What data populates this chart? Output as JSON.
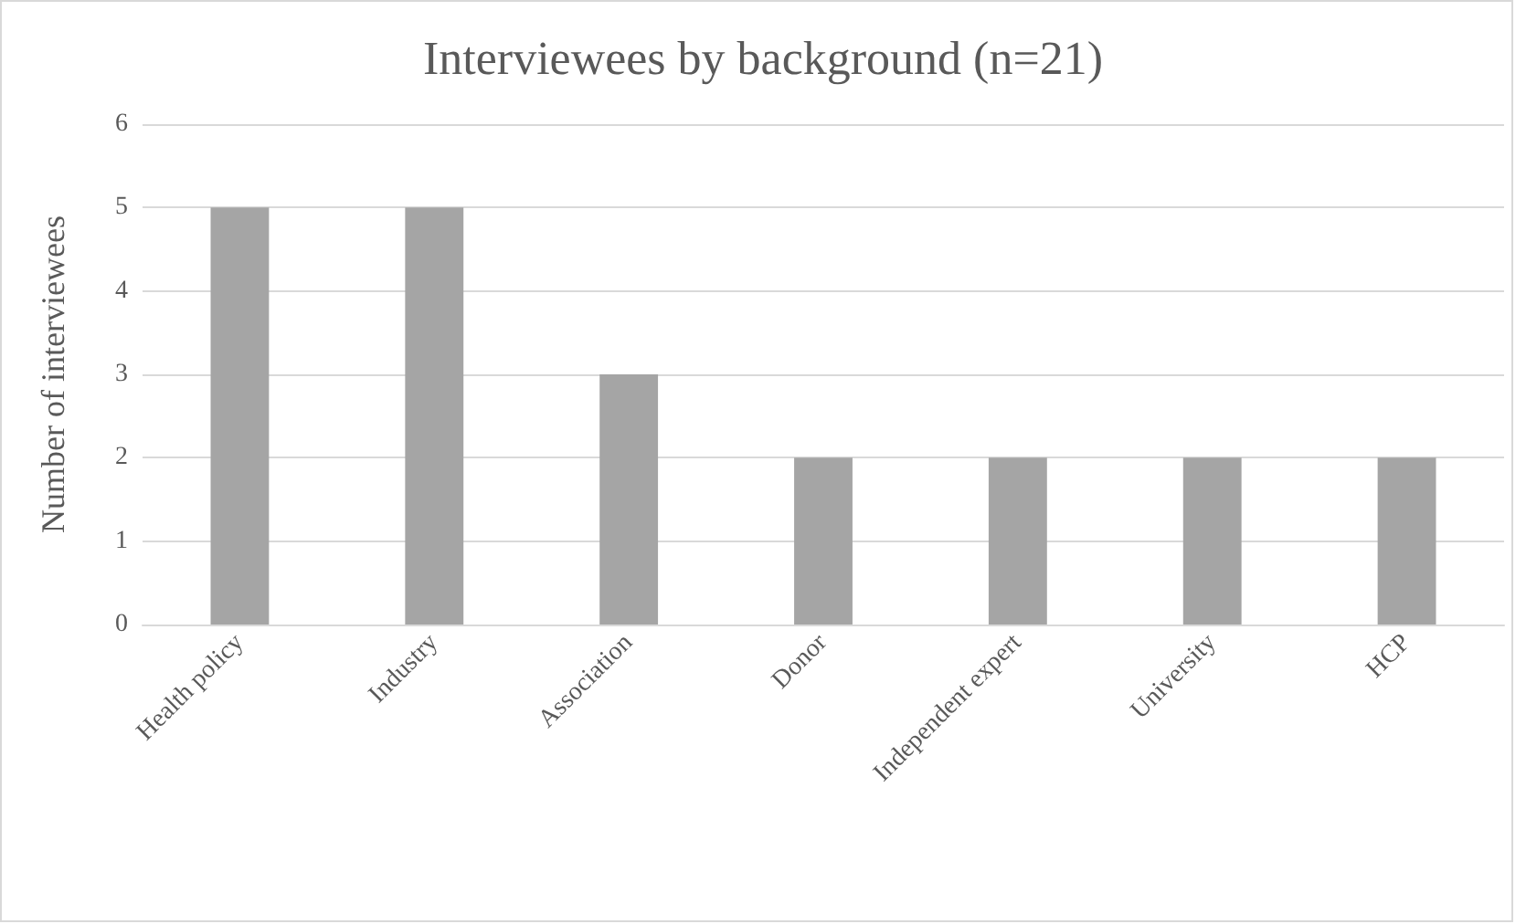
{
  "chart_data": {
    "type": "bar",
    "title": "Interviewees by background (n=21)",
    "ylabel": "Number of interviewees",
    "categories": [
      "Health policy",
      "Industry",
      "Association",
      "Donor",
      "Independent expert",
      "University",
      "HCP"
    ],
    "values": [
      5,
      5,
      3,
      2,
      2,
      2,
      2
    ],
    "color": "#a5a5a5",
    "ylim": [
      0,
      6
    ],
    "yticks": [
      0,
      1,
      2,
      3,
      4,
      5,
      6
    ],
    "grid": "y"
  }
}
